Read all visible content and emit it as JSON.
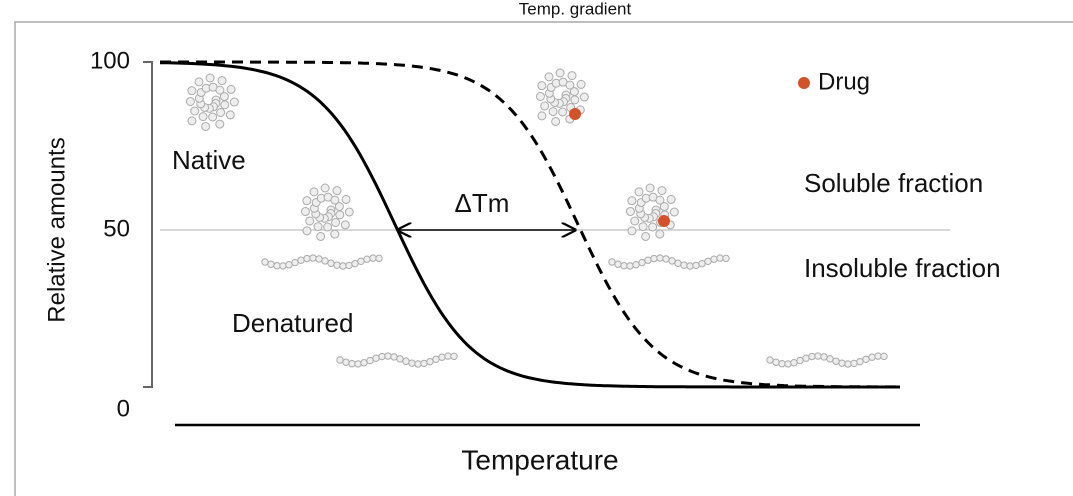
{
  "header": {
    "title": "Temp. gradient"
  },
  "axes": {
    "y_label": "Relative amounts",
    "x_label": "Temperature",
    "y_ticks": [
      "100",
      "50",
      "0"
    ]
  },
  "annotations": {
    "delta": "ΔTm",
    "native": "Native",
    "denatured": "Denatured",
    "soluble": "Soluble fraction",
    "insoluble": "Insoluble fraction"
  },
  "legend": {
    "drug": "Drug"
  }
}
